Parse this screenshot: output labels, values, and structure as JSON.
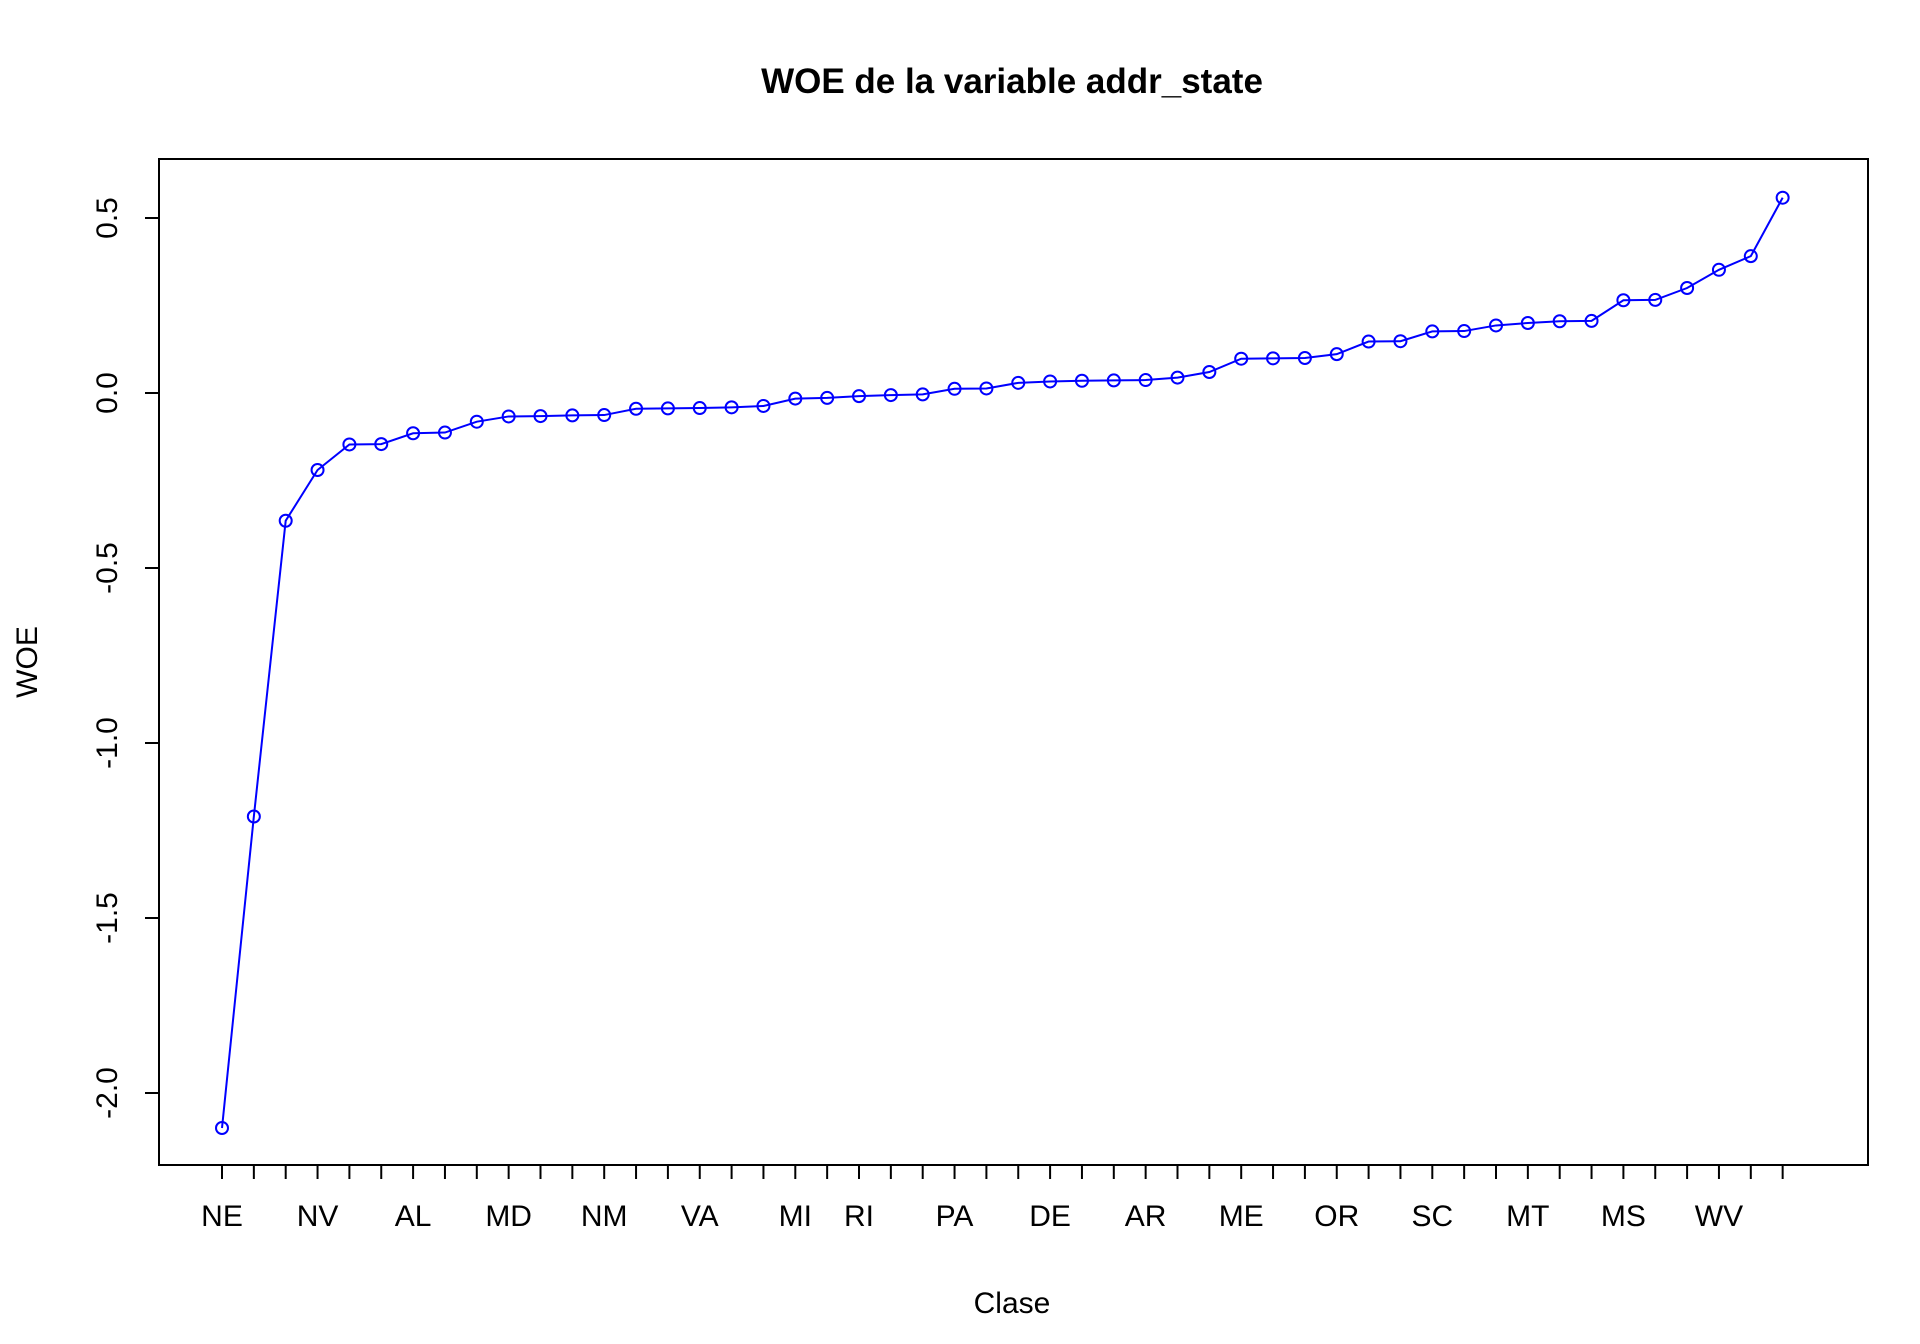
{
  "chart_data": {
    "type": "line",
    "title": "WOE de la variable addr_state",
    "xlabel": "Clase",
    "ylabel": "WOE",
    "ylim": [
      -2.2,
      0.63
    ],
    "y_ticks": [
      "-2.0",
      "-1.5",
      "-1.0",
      "-0.5",
      "0.0",
      "0.5"
    ],
    "y_tick_values": [
      -2.0,
      -1.5,
      -1.0,
      -0.5,
      0.0,
      0.5
    ],
    "x_tick_labels": [
      {
        "index": 1,
        "label": "NE"
      },
      {
        "index": 4,
        "label": "NV"
      },
      {
        "index": 7,
        "label": "AL"
      },
      {
        "index": 10,
        "label": "MD"
      },
      {
        "index": 13,
        "label": "NM"
      },
      {
        "index": 16,
        "label": "VA"
      },
      {
        "index": 19,
        "label": "MI"
      },
      {
        "index": 21,
        "label": "RI"
      },
      {
        "index": 24,
        "label": "PA"
      },
      {
        "index": 27,
        "label": "DE"
      },
      {
        "index": 30,
        "label": "AR"
      },
      {
        "index": 33,
        "label": "ME"
      },
      {
        "index": 36,
        "label": "OR"
      },
      {
        "index": 39,
        "label": "SC"
      },
      {
        "index": 42,
        "label": "MT"
      },
      {
        "index": 45,
        "label": "MS"
      },
      {
        "index": 48,
        "label": "WV"
      }
    ],
    "grid": false,
    "series": [
      {
        "color": "#0000ff",
        "values": [
          -2.1,
          -1.21,
          -0.365,
          -0.22,
          -0.147,
          -0.146,
          -0.115,
          -0.113,
          -0.082,
          -0.067,
          -0.066,
          -0.064,
          -0.063,
          -0.045,
          -0.044,
          -0.043,
          -0.041,
          -0.037,
          -0.016,
          -0.014,
          -0.009,
          -0.006,
          -0.004,
          0.012,
          0.013,
          0.029,
          0.033,
          0.035,
          0.036,
          0.037,
          0.044,
          0.06,
          0.098,
          0.099,
          0.1,
          0.111,
          0.147,
          0.148,
          0.176,
          0.177,
          0.193,
          0.2,
          0.205,
          0.206,
          0.265,
          0.266,
          0.3,
          0.352,
          0.391,
          0.558
        ]
      }
    ]
  }
}
